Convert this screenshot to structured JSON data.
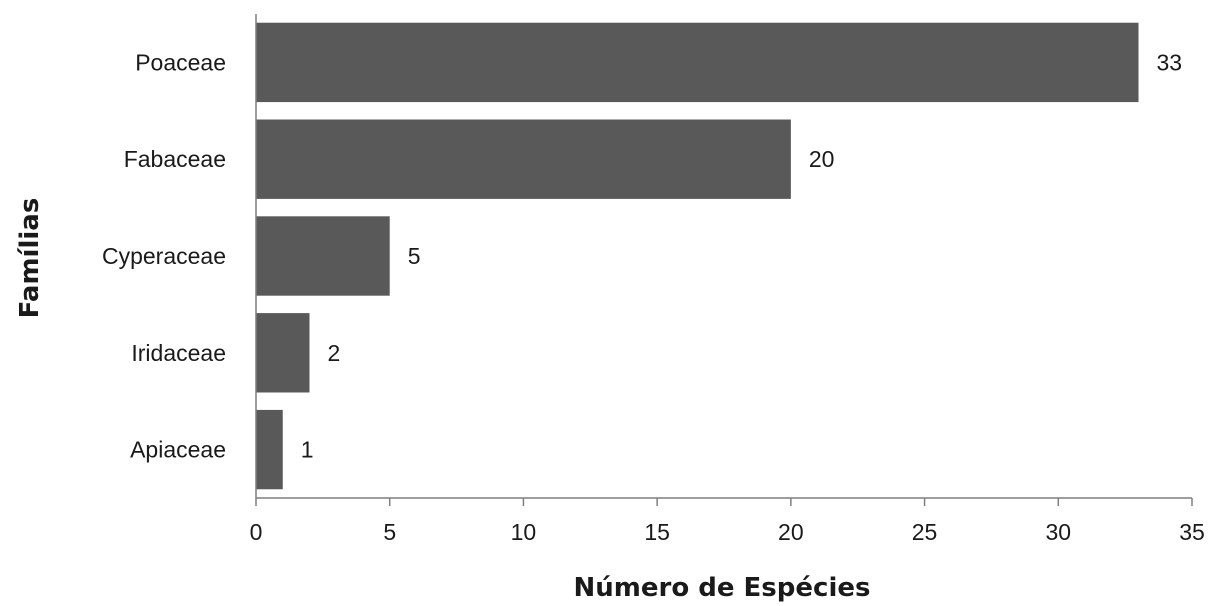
{
  "chart_data": {
    "type": "bar",
    "orientation": "horizontal",
    "categories": [
      "Poaceae",
      "Fabaceae",
      "Cyperaceae",
      "Iridaceae",
      "Apiaceae"
    ],
    "values": [
      33,
      20,
      5,
      2,
      1
    ],
    "data_labels": [
      "33",
      "20",
      "5",
      "2",
      "1"
    ],
    "xlabel": "Número de Espécies",
    "ylabel": "Famílias",
    "xlim": [
      0,
      35
    ],
    "xticks": [
      0,
      5,
      10,
      15,
      20,
      25,
      30,
      35
    ],
    "grid": false,
    "legend": "none",
    "colors": {
      "bar": "#595959",
      "axis": "#7f7f7f",
      "text": "#1a1a1a"
    }
  }
}
